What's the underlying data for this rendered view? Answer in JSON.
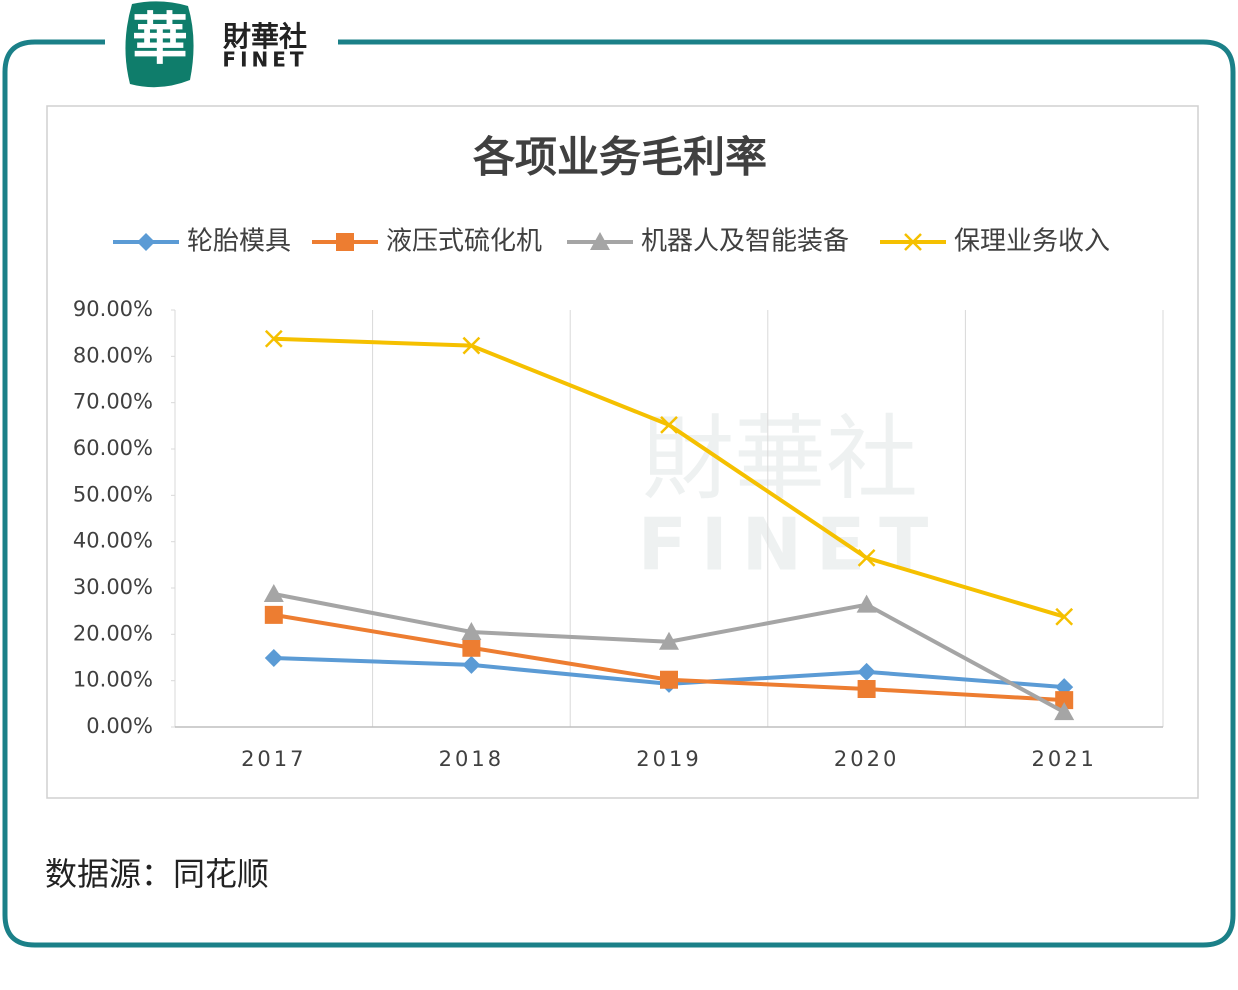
{
  "brand": {
    "logo_char": "華",
    "name": "財華社",
    "name_en": "FINET"
  },
  "chart_data": {
    "type": "line",
    "title": "各项业务毛利率",
    "categories": [
      "2017",
      "2018",
      "2019",
      "2020",
      "2021"
    ],
    "series": [
      {
        "name": "轮胎模具",
        "color": "#5b9bd5",
        "marker": "diamond",
        "values": [
          14.9,
          13.4,
          9.3,
          11.9,
          8.6
        ]
      },
      {
        "name": "液压式硫化机",
        "color": "#ed7d31",
        "marker": "square",
        "values": [
          24.2,
          17.1,
          10.2,
          8.2,
          5.8
        ]
      },
      {
        "name": "机器人及智能装备",
        "color": "#a5a5a5",
        "marker": "triangle",
        "values": [
          28.7,
          20.5,
          18.4,
          26.4,
          3.2
        ]
      },
      {
        "name": "保理业务收入",
        "color": "#f5c000",
        "marker": "x",
        "values": [
          83.8,
          82.3,
          65.2,
          36.5,
          23.8
        ]
      }
    ],
    "ylim": [
      0,
      90
    ],
    "yticks": [
      {
        "value": 0,
        "label": "0.00%"
      },
      {
        "value": 10,
        "label": "10.00%"
      },
      {
        "value": 20,
        "label": "20.00%"
      },
      {
        "value": 30,
        "label": "30.00%"
      },
      {
        "value": 40,
        "label": "40.00%"
      },
      {
        "value": 50,
        "label": "50.00%"
      },
      {
        "value": 60,
        "label": "60.00%"
      },
      {
        "value": 70,
        "label": "70.00%"
      },
      {
        "value": 80,
        "label": "80.00%"
      },
      {
        "value": 90,
        "label": "90.00%"
      }
    ],
    "legend": "top"
  },
  "source": "数据源：同花顺"
}
